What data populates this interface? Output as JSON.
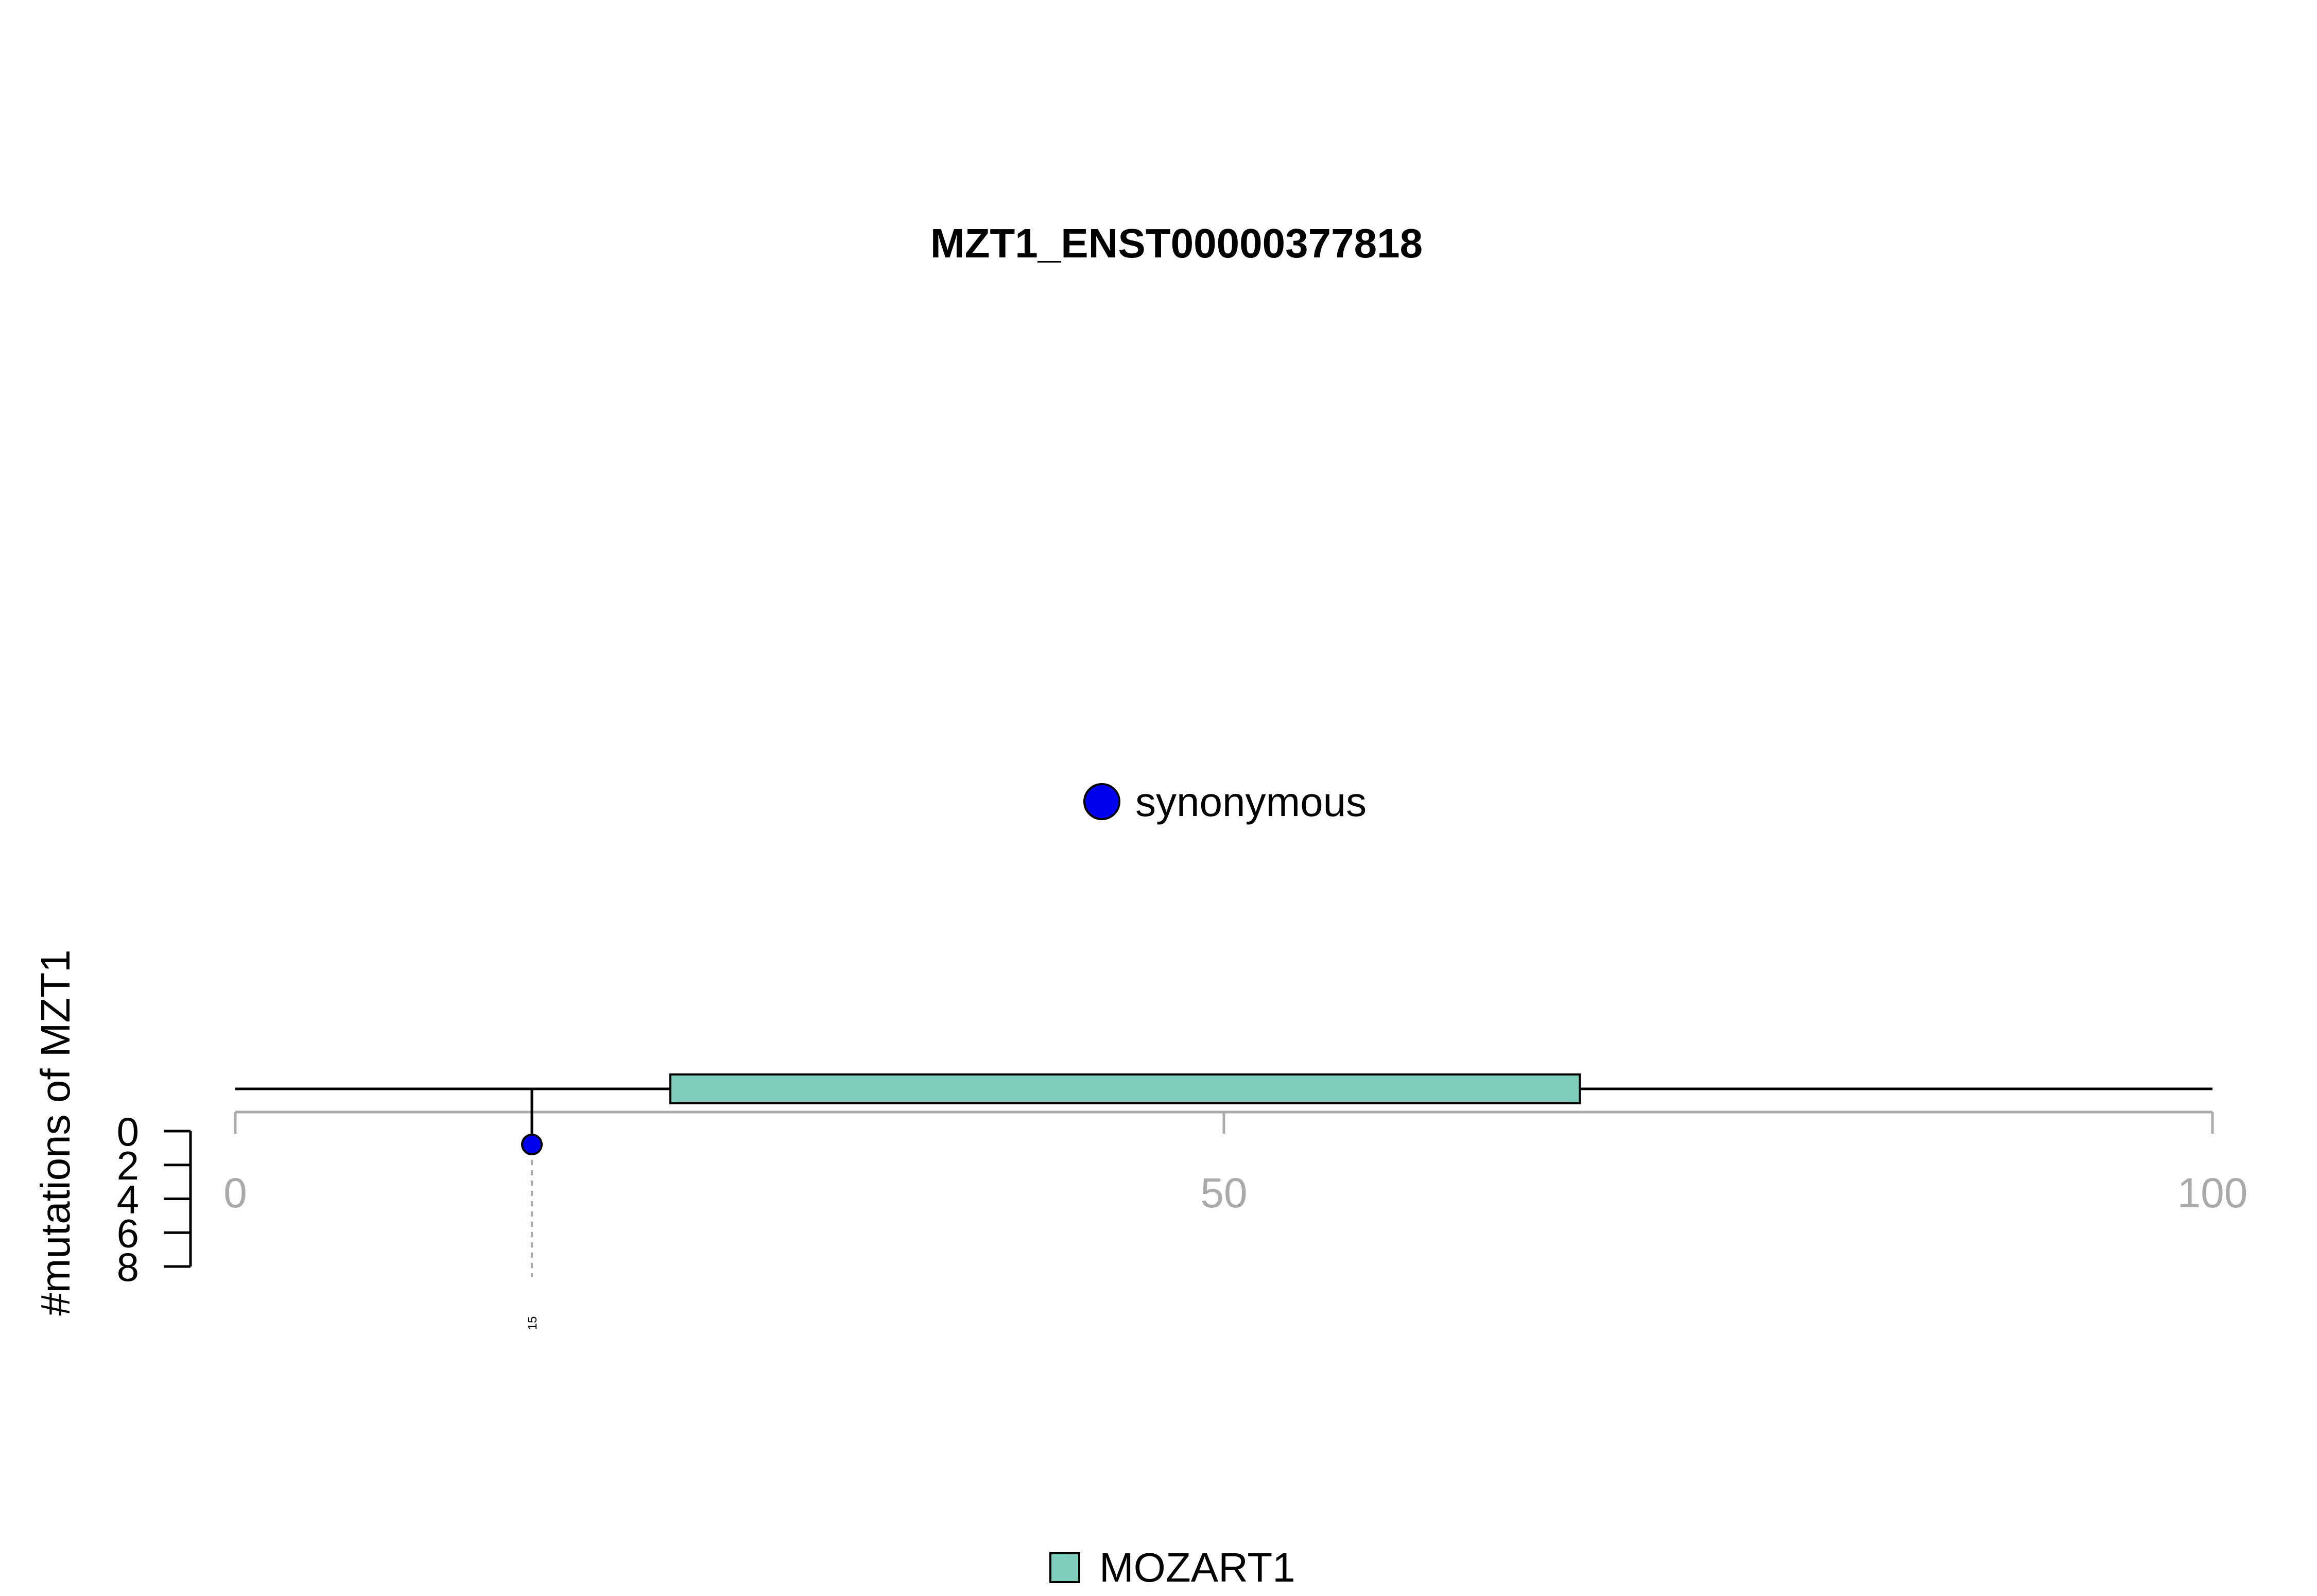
{
  "chart_data": {
    "type": "lollipop",
    "title": "MZT1_ENST00000377818",
    "xlim": [
      0,
      100
    ],
    "x_ticks": [
      0,
      50,
      100
    ],
    "x_tick_labels": [
      "0",
      "50",
      "100"
    ],
    "y_axis": {
      "label": "#mutations of MZT1",
      "ticks": [
        0,
        2,
        4,
        6,
        8
      ],
      "tick_labels": [
        "0",
        "2",
        "4",
        "6",
        "8"
      ],
      "lim": [
        0,
        8
      ]
    },
    "domains": [
      {
        "name": "MOZART1",
        "start": 22,
        "end": 68,
        "color": "#7fcdbb"
      }
    ],
    "mutations": [
      {
        "position": 15,
        "count": 1,
        "type": "synonymous",
        "label": "15",
        "color": "#0000ee"
      }
    ],
    "legend": {
      "mutation_types": [
        {
          "label": "synonymous",
          "color": "#0000ee"
        }
      ],
      "domains": [
        {
          "label": "MOZART1",
          "color": "#7fcdbb"
        }
      ]
    },
    "colors": {
      "backbone": "#000000",
      "axis": "#aaaaaa",
      "guide": "#aaaaaa"
    }
  }
}
